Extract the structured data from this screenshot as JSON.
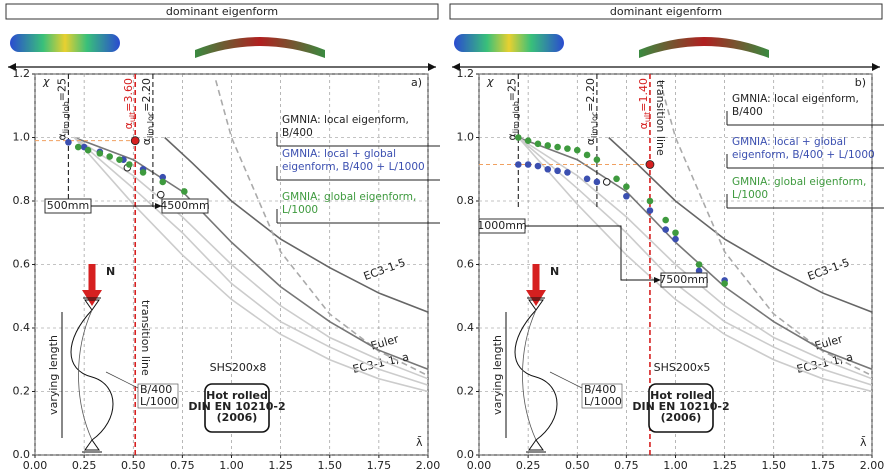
{
  "chart_data": [
    {
      "type": "scatter",
      "title": "dominant eigenform",
      "panel_label": "a)",
      "ylabel": "χ",
      "xlabel": "λ̄",
      "xlim": [
        0,
        2
      ],
      "ylim": [
        0,
        1.2
      ],
      "xticks": [
        {
          "value": 0,
          "label": "0.00"
        },
        0.25,
        {
          "value": 0.5,
          "label": "0.50"
        },
        0.75,
        {
          "value": 1,
          "label": "1.00"
        },
        1.25,
        {
          "value": 1.5,
          "label": "1.50"
        },
        1.75,
        {
          "value": 2,
          "label": "2.00"
        }
      ],
      "yticks": [
        {
          "value": 0,
          "label": "0.0"
        },
        0.2,
        0.4,
        0.6,
        0.8,
        {
          "value": 1,
          "label": "1.0"
        },
        1.2
      ],
      "grid": true,
      "series": [
        {
          "name": "GMNIA: local eigenform, B/400",
          "color": "#ffffff",
          "x": [
            0.47,
            0.64
          ],
          "values": [
            0.905,
            0.82
          ]
        },
        {
          "name": "GMNIA: local + global eigenform, B/400 + L/1000",
          "color": "#3b4fb0",
          "x": [
            0.17,
            0.25,
            0.33,
            0.45,
            0.55,
            0.65
          ],
          "values": [
            0.985,
            0.97,
            0.955,
            0.93,
            0.9,
            0.875
          ]
        },
        {
          "name": "GMNIA: global eigenform, L/1000",
          "color": "#3e9a3e",
          "x": [
            0.22,
            0.27,
            0.33,
            0.38,
            0.43,
            0.48,
            0.55,
            0.65,
            0.76
          ],
          "values": [
            0.97,
            0.96,
            0.95,
            0.94,
            0.93,
            0.915,
            0.89,
            0.86,
            0.83
          ]
        }
      ],
      "ultimate": {
        "x": 0.51,
        "value": 0.99,
        "color": "#d62020"
      },
      "vlines": [
        {
          "x": 0.17,
          "color": "#222222",
          "symbol": "α",
          "sub": "lim,glob",
          "rest": "=25"
        },
        {
          "x": 0.51,
          "color": "#d62020",
          "symbol": "α",
          "sub": "ult",
          "rest": "=3.60"
        },
        {
          "x": 0.6,
          "color": "#222222",
          "symbol": "α",
          "sub": "lim,loc",
          "rest": "=2.20"
        }
      ],
      "transition_label": "transition line",
      "curves": [
        {
          "label": "EC3-1-5",
          "color": "#666666",
          "x": [
            0.66,
            0.8,
            1.0,
            1.25,
            1.5,
            1.75,
            2.0
          ],
          "values": [
            1.0,
            0.92,
            0.8,
            0.68,
            0.59,
            0.51,
            0.45
          ]
        },
        {
          "label": "Euler",
          "color": "#aaaaaa",
          "dashed": true,
          "x": [
            0.92,
            1.0,
            1.25,
            1.5,
            1.75,
            2.0
          ],
          "values": [
            1.18,
            1.0,
            0.64,
            0.444,
            0.327,
            0.25
          ]
        },
        {
          "label": "EC3-1-1, a",
          "color": "#777777",
          "x": [
            0.2,
            0.5,
            0.75,
            1.0,
            1.25,
            1.5,
            1.75,
            2.0
          ],
          "values": [
            1.0,
            0.93,
            0.83,
            0.67,
            0.53,
            0.42,
            0.33,
            0.27
          ]
        },
        {
          "color": "#cccccc",
          "x": [
            0.2,
            0.5,
            0.75,
            1.0,
            1.25,
            1.5,
            1.75,
            2.0
          ],
          "values": [
            1.0,
            0.88,
            0.75,
            0.6,
            0.47,
            0.37,
            0.3,
            0.24
          ]
        },
        {
          "color": "#cccccc",
          "x": [
            0.2,
            0.5,
            0.75,
            1.0,
            1.25,
            1.5,
            1.75,
            2.0
          ],
          "values": [
            1.0,
            0.84,
            0.7,
            0.54,
            0.42,
            0.34,
            0.27,
            0.22
          ]
        },
        {
          "color": "#cccccc",
          "x": [
            0.2,
            0.5,
            0.75,
            1.0,
            1.25,
            1.5,
            1.75,
            2.0
          ],
          "values": [
            1.0,
            0.79,
            0.63,
            0.49,
            0.38,
            0.3,
            0.24,
            0.2
          ]
        }
      ],
      "lengths": [
        "500mm",
        "4500mm"
      ],
      "load": "N",
      "member": "varying length",
      "imperfections": [
        "B/400",
        "L/1000"
      ],
      "section": "SHS200x8",
      "material": [
        "Hot rolled",
        "DIN EN 10210-2",
        "(2006)"
      ]
    },
    {
      "type": "scatter",
      "title": "dominant eigenform",
      "panel_label": "b)",
      "ylabel": "χ",
      "xlabel": "λ̄",
      "xlim": [
        0,
        2
      ],
      "ylim": [
        0,
        1.2
      ],
      "xticks": [
        {
          "value": 0,
          "label": "0.00"
        },
        0.25,
        {
          "value": 0.5,
          "label": "0.50"
        },
        0.75,
        {
          "value": 1,
          "label": "1.00"
        },
        1.25,
        {
          "value": 1.5,
          "label": "1.50"
        },
        1.75,
        {
          "value": 2,
          "label": "2.00"
        }
      ],
      "yticks": [
        {
          "value": 0,
          "label": "0.0"
        },
        0.2,
        0.4,
        0.6,
        0.8,
        {
          "value": 1,
          "label": "1.0"
        },
        1.2
      ],
      "grid": true,
      "series": [
        {
          "name": "GMNIA: local eigenform, B/400",
          "color": "#ffffff",
          "x": [
            0.65
          ],
          "values": [
            0.86
          ]
        },
        {
          "name": "GMNIA: local + global eigenform, B/400 + L/1000",
          "color": "#3b4fb0",
          "x": [
            0.2,
            0.25,
            0.3,
            0.35,
            0.4,
            0.45,
            0.55,
            0.6,
            0.75,
            0.87,
            0.95,
            1.0,
            1.12,
            1.25
          ],
          "values": [
            0.915,
            0.915,
            0.91,
            0.9,
            0.895,
            0.89,
            0.87,
            0.86,
            0.815,
            0.77,
            0.71,
            0.68,
            0.58,
            0.55
          ]
        },
        {
          "name": "GMNIA: global eigenform, L/1000",
          "color": "#3e9a3e",
          "x": [
            0.2,
            0.25,
            0.3,
            0.35,
            0.4,
            0.45,
            0.5,
            0.55,
            0.6,
            0.7,
            0.75,
            0.87,
            0.95,
            1.0,
            1.12,
            1.25
          ],
          "values": [
            1.0,
            0.99,
            0.98,
            0.975,
            0.97,
            0.965,
            0.96,
            0.945,
            0.93,
            0.87,
            0.845,
            0.8,
            0.74,
            0.7,
            0.6,
            0.54
          ]
        }
      ],
      "ultimate": {
        "x": 0.87,
        "value": 0.915,
        "color": "#d62020"
      },
      "vlines": [
        {
          "x": 0.2,
          "color": "#222222",
          "symbol": "α",
          "sub": "lim,glob",
          "rest": "=25"
        },
        {
          "x": 0.6,
          "color": "#222222",
          "symbol": "α",
          "sub": "lim,loc",
          "rest": "=2.20"
        },
        {
          "x": 0.87,
          "color": "#d62020",
          "symbol": "α",
          "sub": "ult",
          "rest": "=1.40"
        }
      ],
      "transition_label": "transition line",
      "curves": [
        {
          "label": "EC3-1-5",
          "color": "#666666",
          "x": [
            0.66,
            0.8,
            1.0,
            1.25,
            1.5,
            1.75,
            2.0
          ],
          "values": [
            1.0,
            0.92,
            0.8,
            0.68,
            0.59,
            0.51,
            0.45
          ]
        },
        {
          "label": "Euler",
          "color": "#aaaaaa",
          "dashed": true,
          "x": [
            0.92,
            1.0,
            1.25,
            1.5,
            1.75,
            2.0
          ],
          "values": [
            1.18,
            1.0,
            0.64,
            0.444,
            0.327,
            0.25
          ]
        },
        {
          "label": "EC3-1-1, a",
          "color": "#777777",
          "x": [
            0.2,
            0.5,
            0.75,
            1.0,
            1.25,
            1.5,
            1.75,
            2.0
          ],
          "values": [
            1.0,
            0.93,
            0.83,
            0.67,
            0.53,
            0.42,
            0.33,
            0.27
          ]
        },
        {
          "color": "#cccccc",
          "x": [
            0.2,
            0.5,
            0.75,
            1.0,
            1.25,
            1.5,
            1.75,
            2.0
          ],
          "values": [
            1.0,
            0.88,
            0.75,
            0.6,
            0.47,
            0.37,
            0.3,
            0.24
          ]
        },
        {
          "color": "#cccccc",
          "x": [
            0.2,
            0.5,
            0.75,
            1.0,
            1.25,
            1.5,
            1.75,
            2.0
          ],
          "values": [
            1.0,
            0.84,
            0.7,
            0.54,
            0.42,
            0.34,
            0.27,
            0.22
          ]
        },
        {
          "color": "#cccccc",
          "x": [
            0.2,
            0.5,
            0.75,
            1.0,
            1.25,
            1.5,
            1.75,
            2.0
          ],
          "values": [
            1.0,
            0.79,
            0.63,
            0.49,
            0.38,
            0.3,
            0.24,
            0.2
          ]
        }
      ],
      "lengths": [
        "1000mm",
        "7500mm"
      ],
      "load": "N",
      "member": "varying length",
      "imperfections": [
        "B/400",
        "L/1000"
      ],
      "section": "SHS200x5",
      "material": [
        "Hot rolled",
        "DIN EN 10210-2",
        "(2006)"
      ]
    }
  ]
}
